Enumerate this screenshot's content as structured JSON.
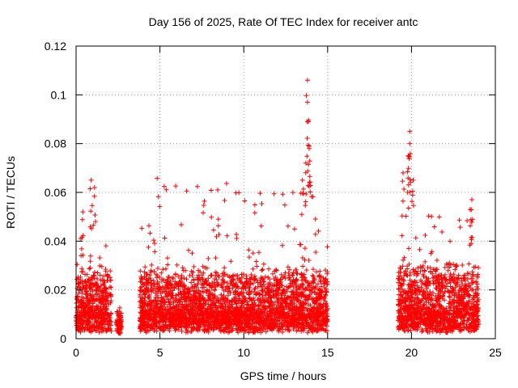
{
  "chart_data": {
    "type": "scatter",
    "title": "Day 156 of 2025, Rate Of TEC Index for receiver antc",
    "xlabel": "GPS time / hours",
    "ylabel": "ROTI / TECUs",
    "xlim": [
      0,
      25
    ],
    "ylim": [
      0,
      0.12
    ],
    "x_ticks": [
      0,
      5,
      10,
      15,
      20,
      25
    ],
    "x_tick_labels": [
      "0",
      "5",
      "10",
      "15",
      "20",
      "25"
    ],
    "y_ticks": [
      0,
      0.02,
      0.04,
      0.06,
      0.08,
      0.1,
      0.12
    ],
    "y_tick_labels": [
      "0",
      "0.02",
      "0.04",
      "0.06",
      "0.08",
      "0.1",
      "0.12"
    ],
    "grid": true,
    "legend": "none",
    "marker": "plus",
    "series_color": "#ff0000",
    "data_segments": [
      {
        "from": 0.0,
        "to": 2.1,
        "base": 0.008,
        "spread": 0.02,
        "peak": 0.065
      },
      {
        "from": 2.4,
        "to": 2.7,
        "base": 0.005,
        "spread": 0.008,
        "peak": 0.018
      },
      {
        "from": 3.8,
        "to": 15.0,
        "base": 0.008,
        "spread": 0.02,
        "peak": 0.106
      },
      {
        "from": 19.2,
        "to": 24.0,
        "base": 0.008,
        "spread": 0.022,
        "peak": 0.085
      }
    ],
    "highlights": [
      {
        "x": 0.9,
        "y": 0.065
      },
      {
        "x": 1.1,
        "y": 0.062
      },
      {
        "x": 0.4,
        "y": 0.052
      },
      {
        "x": 13.8,
        "y": 0.106
      },
      {
        "x": 13.8,
        "y": 0.097
      },
      {
        "x": 13.9,
        "y": 0.079
      },
      {
        "x": 13.9,
        "y": 0.078
      },
      {
        "x": 13.7,
        "y": 0.072
      },
      {
        "x": 13.5,
        "y": 0.065
      },
      {
        "x": 19.9,
        "y": 0.085
      },
      {
        "x": 19.9,
        "y": 0.08
      },
      {
        "x": 19.8,
        "y": 0.075
      },
      {
        "x": 19.5,
        "y": 0.068
      },
      {
        "x": 20.1,
        "y": 0.065
      },
      {
        "x": 23.6,
        "y": 0.057
      },
      {
        "x": 23.5,
        "y": 0.053
      }
    ]
  }
}
